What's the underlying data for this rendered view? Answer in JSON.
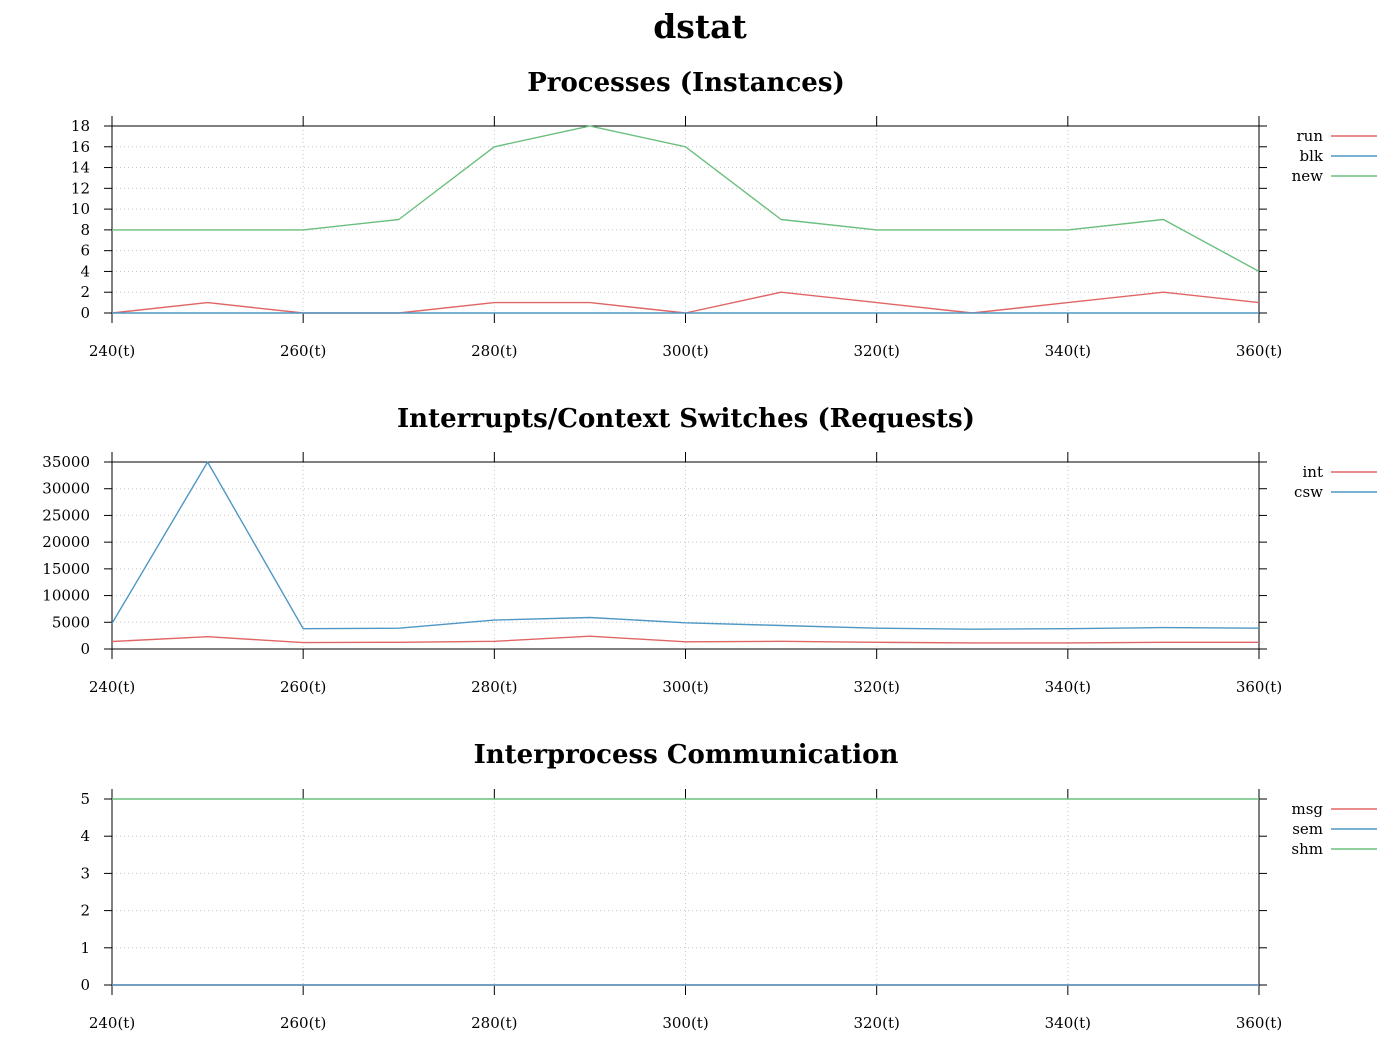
{
  "title": "dstat",
  "colors": {
    "red": "#e06666",
    "blue": "#4f97c4",
    "green": "#6bbf7e"
  },
  "chart_data": [
    {
      "type": "line",
      "title": "Processes (Instances)",
      "xlim": [
        240,
        360
      ],
      "x_ticks": [
        240,
        260,
        280,
        300,
        320,
        340,
        360
      ],
      "x_tick_labels": [
        "240(t)",
        "260(t)",
        "280(t)",
        "300(t)",
        "320(t)",
        "340(t)",
        "360(t)"
      ],
      "ylim": [
        0,
        18
      ],
      "y_ticks": [
        0,
        2,
        4,
        6,
        8,
        10,
        12,
        14,
        16,
        18
      ],
      "y_tick_labels": [
        "0",
        "2",
        "4",
        "6",
        "8",
        "10",
        "12",
        "14",
        "16",
        "18"
      ],
      "grid": true,
      "legend": "right",
      "x": [
        240,
        250,
        260,
        270,
        280,
        290,
        300,
        310,
        320,
        330,
        340,
        350,
        360
      ],
      "series": [
        {
          "name": "run",
          "color": "#e06666",
          "values": [
            0,
            1,
            0,
            0,
            1,
            1,
            0,
            2,
            1,
            0,
            1,
            2,
            1
          ]
        },
        {
          "name": "blk",
          "color": "#4f97c4",
          "values": [
            0,
            0,
            0,
            0,
            0,
            0,
            0,
            0,
            0,
            0,
            0,
            0,
            0
          ]
        },
        {
          "name": "new",
          "color": "#6bbf7e",
          "values": [
            8,
            8,
            8,
            9,
            16,
            18,
            16,
            9,
            8,
            8,
            8,
            9,
            4
          ]
        }
      ]
    },
    {
      "type": "line",
      "title": "Interrupts/Context Switches (Requests)",
      "xlim": [
        240,
        360
      ],
      "x_ticks": [
        240,
        260,
        280,
        300,
        320,
        340,
        360
      ],
      "x_tick_labels": [
        "240(t)",
        "260(t)",
        "280(t)",
        "300(t)",
        "320(t)",
        "340(t)",
        "360(t)"
      ],
      "ylim": [
        0,
        35000
      ],
      "y_ticks": [
        0,
        5000,
        10000,
        15000,
        20000,
        25000,
        30000,
        35000
      ],
      "y_tick_labels": [
        "0",
        "5000",
        "10000",
        "15000",
        "20000",
        "25000",
        "30000",
        "35000"
      ],
      "grid": true,
      "legend": "right",
      "x": [
        240,
        250,
        260,
        270,
        280,
        290,
        300,
        310,
        320,
        330,
        340,
        350,
        360
      ],
      "series": [
        {
          "name": "int",
          "color": "#e06666",
          "values": [
            1400,
            2300,
            1200,
            1250,
            1450,
            2400,
            1350,
            1450,
            1250,
            1150,
            1150,
            1250,
            1250
          ]
        },
        {
          "name": "csw",
          "color": "#4f97c4",
          "values": [
            4800,
            35000,
            3800,
            3900,
            5400,
            5900,
            4900,
            4400,
            3900,
            3700,
            3800,
            4000,
            3900
          ]
        }
      ]
    },
    {
      "type": "line",
      "title": "Interprocess Communication",
      "xlim": [
        240,
        360
      ],
      "x_ticks": [
        240,
        260,
        280,
        300,
        320,
        340,
        360
      ],
      "x_tick_labels": [
        "240(t)",
        "260(t)",
        "280(t)",
        "300(t)",
        "320(t)",
        "340(t)",
        "360(t)"
      ],
      "ylim": [
        0,
        5
      ],
      "y_ticks": [
        0,
        1,
        2,
        3,
        4,
        5
      ],
      "y_tick_labels": [
        "0",
        "1",
        "2",
        "3",
        "4",
        "5"
      ],
      "grid": true,
      "legend": "right",
      "x": [
        240,
        250,
        260,
        270,
        280,
        290,
        300,
        310,
        320,
        330,
        340,
        350,
        360
      ],
      "series": [
        {
          "name": "msg",
          "color": "#e06666",
          "values": [
            0,
            0,
            0,
            0,
            0,
            0,
            0,
            0,
            0,
            0,
            0,
            0,
            0
          ]
        },
        {
          "name": "sem",
          "color": "#4f97c4",
          "values": [
            0,
            0,
            0,
            0,
            0,
            0,
            0,
            0,
            0,
            0,
            0,
            0,
            0
          ]
        },
        {
          "name": "shm",
          "color": "#6bbf7e",
          "values": [
            5,
            5,
            5,
            5,
            5,
            5,
            5,
            5,
            5,
            5,
            5,
            5,
            5
          ]
        }
      ]
    }
  ]
}
